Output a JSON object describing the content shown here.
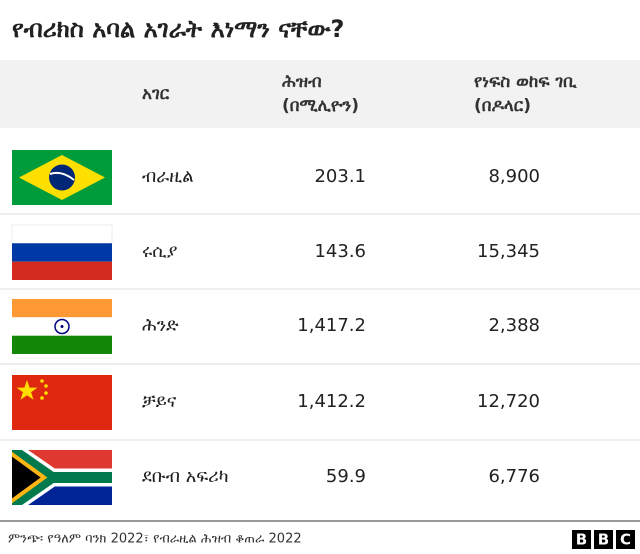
{
  "title": "የብሪክስ አባል አገራት እነማን ናቸው?",
  "table": {
    "header": [
      [
        "አገር"
      ],
      [
        "ሕዝብ",
        "(በሚሊዮን)"
      ],
      [
        "የነፍስ ወከፍ ገቢ",
        "(በዶላር)"
      ]
    ],
    "rows": [
      [
        "ብራዚል",
        "203.1",
        "8,900"
      ],
      [
        "ሩሲያ",
        "143.6",
        "15,345"
      ],
      [
        "ሕንድ",
        "1,417.2",
        "2,388"
      ],
      [
        "ቻይና",
        "1,412.2",
        "12,720"
      ],
      [
        "ደቡብ አፍሪካ",
        "59.9",
        "6,776"
      ]
    ]
  },
  "footer": {
    "source": "ምንጭ፡ የዓለም ባንክ 2022፣ የብራዚል ሕዝብ ቆጠራ 2022",
    "logo": [
      "B",
      "B",
      "C"
    ]
  }
}
